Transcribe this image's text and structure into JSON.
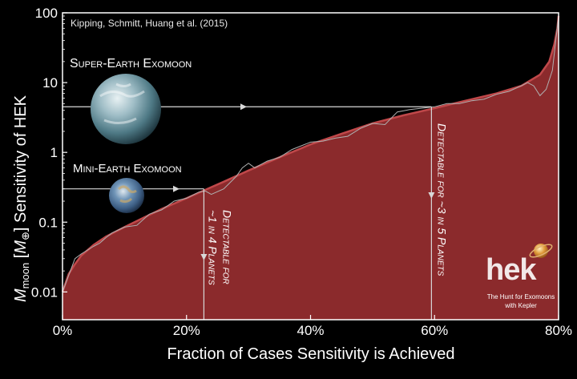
{
  "chart_data": {
    "type": "area",
    "credit": "Kipping, Schmitt, Huang et al. (2015)",
    "xlabel": "Fraction of Cases Sensitivity is Achieved",
    "ylabel_main": "M",
    "ylabel_sub": "moon",
    "ylabel_rest1": " [",
    "ylabel_rest_m": "M",
    "ylabel_rest_sym": "⊕",
    "ylabel_rest2": "] Sensitivity of HEK",
    "x_ticks": [
      {
        "v": 0,
        "label": "0%"
      },
      {
        "v": 20,
        "label": "20%"
      },
      {
        "v": 40,
        "label": "40%"
      },
      {
        "v": 60,
        "label": "60%"
      },
      {
        "v": 80,
        "label": "80%"
      }
    ],
    "y_ticks": [
      {
        "v": 0.01,
        "label": "0.01"
      },
      {
        "v": 0.1,
        "label": "0.1"
      },
      {
        "v": 1,
        "label": "1"
      },
      {
        "v": 10,
        "label": "10"
      },
      {
        "v": 100,
        "label": "100"
      }
    ],
    "xlim": [
      0,
      80
    ],
    "ylim": [
      0.004,
      100
    ],
    "y_scale": "log",
    "grid": false,
    "colors": {
      "fill": "#8b2a2c",
      "edge": "#c0484a",
      "line": "#b0b0b0",
      "background": "#000000",
      "text": "#ffffff"
    },
    "series": [
      {
        "role": "smooth sensitivity curve (filled)",
        "x": [
          0,
          1,
          2,
          3,
          5,
          7,
          10,
          13,
          16,
          20,
          23,
          26,
          30,
          35,
          40,
          45,
          50,
          55,
          60,
          65,
          70,
          74,
          77,
          78.5,
          79.3,
          79.8,
          80
        ],
        "y": [
          0.01,
          0.018,
          0.025,
          0.033,
          0.047,
          0.062,
          0.085,
          0.115,
          0.155,
          0.22,
          0.29,
          0.38,
          0.55,
          0.85,
          1.3,
          1.85,
          2.6,
          3.4,
          4.3,
          5.5,
          7.0,
          9.0,
          13,
          20,
          35,
          60,
          90
        ]
      },
      {
        "role": "empirical sensitivity line",
        "x": [
          0,
          2,
          3,
          5,
          6,
          7,
          8,
          10,
          12,
          14,
          16,
          18,
          20,
          22,
          23,
          24,
          26,
          28,
          29,
          30,
          31,
          33,
          35,
          37,
          40,
          42,
          44,
          46,
          48,
          50,
          52,
          54,
          56,
          58,
          60,
          62,
          64,
          66,
          68,
          70,
          72,
          74,
          75,
          76,
          77,
          78,
          79,
          80
        ],
        "y": [
          0.01,
          0.03,
          0.035,
          0.045,
          0.05,
          0.06,
          0.07,
          0.085,
          0.09,
          0.13,
          0.15,
          0.2,
          0.22,
          0.27,
          0.28,
          0.25,
          0.3,
          0.45,
          0.6,
          0.7,
          0.6,
          0.75,
          0.85,
          1.1,
          1.4,
          1.45,
          1.6,
          1.7,
          2.2,
          2.6,
          2.5,
          3.8,
          4.1,
          4.3,
          4.5,
          5.0,
          5.0,
          5.5,
          5.8,
          6.8,
          7.5,
          9.0,
          10,
          9.0,
          6.5,
          8.0,
          15,
          90
        ]
      }
    ],
    "annotations": {
      "super_earth": {
        "label": "Super-Earth Exomoon",
        "mass": 4.5,
        "reach_x": 59.5,
        "detect_text": "Detectable for ~3 in 5 Planets"
      },
      "mini_earth": {
        "label": "Mini-Earth Exomoon",
        "mass": 0.3,
        "reach_x": 22.8,
        "detect_text_1": "Detectable for",
        "detect_text_2": "~1 in 4 Planets"
      }
    },
    "logo": {
      "text": "hek",
      "tagline_1": "The Hunt for Exomoons",
      "tagline_2": "with Kepler"
    }
  }
}
